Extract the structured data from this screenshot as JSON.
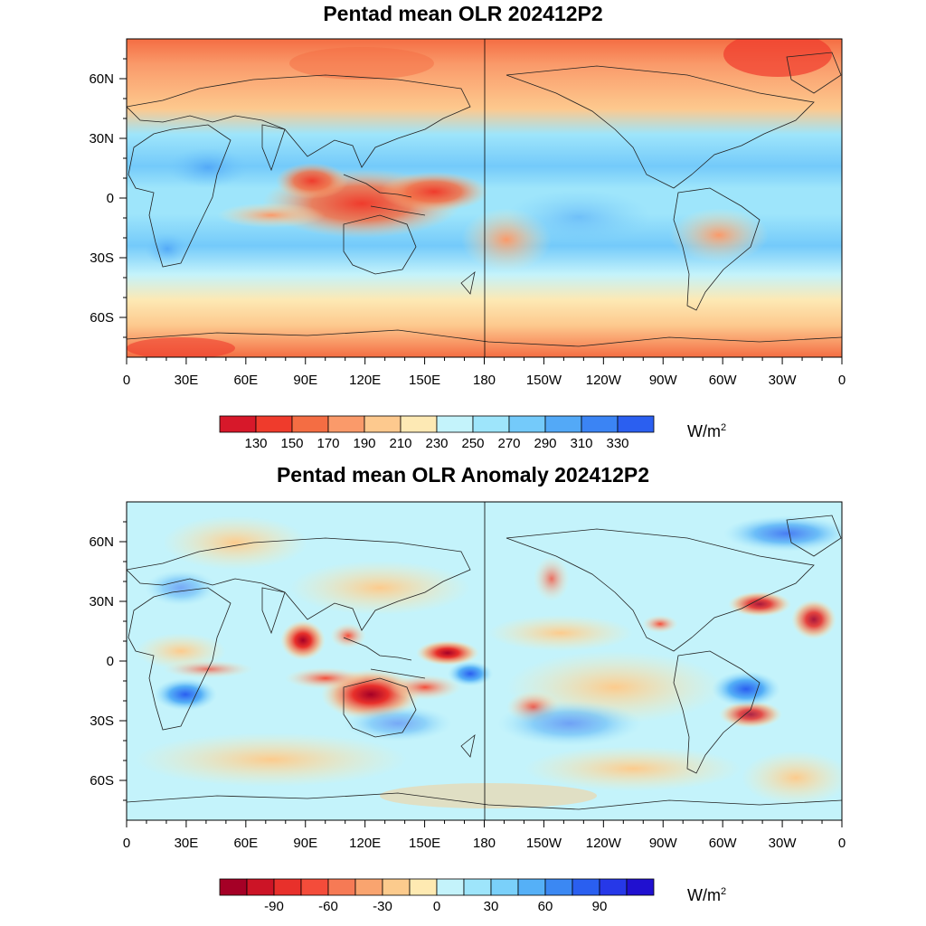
{
  "panels": [
    {
      "title": "Pentad mean OLR 202412P2",
      "lat_labels": [
        "60N",
        "30N",
        "0",
        "30S",
        "60S"
      ],
      "lon_labels": [
        "0",
        "30E",
        "60E",
        "90E",
        "120E",
        "150E",
        "180",
        "150W",
        "120W",
        "90W",
        "60W",
        "30W",
        "0"
      ],
      "colorbar": {
        "colors": [
          "#d7182a",
          "#ef3b2c",
          "#f46d43",
          "#fa9a6a",
          "#fdc98e",
          "#fde9b4",
          "#c4f3fb",
          "#9ee5fb",
          "#74cafa",
          "#53a9f7",
          "#3b84f4",
          "#2b5ff0"
        ],
        "labels": [
          "130",
          "150",
          "170",
          "190",
          "210",
          "230",
          "250",
          "270",
          "290",
          "310",
          "330"
        ],
        "unit_base": "W/m",
        "unit_exp": "2"
      }
    },
    {
      "title": "Pentad mean OLR Anomaly 202412P2",
      "lat_labels": [
        "60N",
        "30N",
        "0",
        "30S",
        "60S"
      ],
      "lon_labels": [
        "0",
        "30E",
        "60E",
        "90E",
        "120E",
        "150E",
        "180",
        "150W",
        "120W",
        "90W",
        "60W",
        "30W",
        "0"
      ],
      "colorbar": {
        "colors": [
          "#a50026",
          "#cc1426",
          "#e8302b",
          "#f44c3a",
          "#f67a55",
          "#f9a46f",
          "#fccb8d",
          "#feeab2",
          "#c4f3fb",
          "#9ee5fb",
          "#7ad0fa",
          "#55b0f7",
          "#3b88f3",
          "#2a5ff0",
          "#2638e8",
          "#2010d0"
        ],
        "labels": [
          "-90",
          "-60",
          "-30",
          "0",
          "30",
          "60",
          "90"
        ],
        "unit_base": "W/m",
        "unit_exp": "2"
      }
    }
  ]
}
